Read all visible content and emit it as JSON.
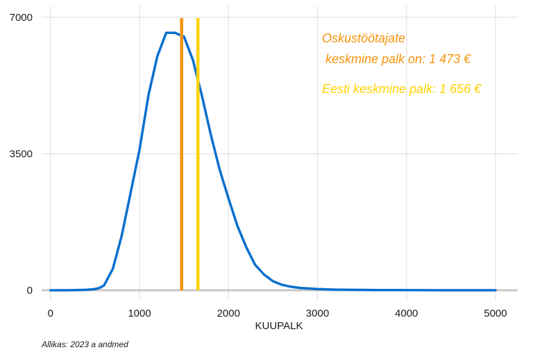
{
  "chart_data": {
    "type": "line",
    "xlabel": "KUUPALK",
    "ylabel": "",
    "xlim": [
      -100,
      5250
    ],
    "ylim": [
      -250,
      7300
    ],
    "x_ticks": [
      0,
      1000,
      2000,
      3000,
      4000,
      5000
    ],
    "x_tick_labels": [
      "0",
      "1000",
      "2000",
      "3000",
      "4000",
      "5000"
    ],
    "y_ticks": [
      0,
      3500,
      7000
    ],
    "y_tick_labels": [
      "0",
      "3500",
      "7000"
    ],
    "grid": true,
    "series": [
      {
        "color": "#0a6fce",
        "x": [
          0,
          200,
          400,
          500,
          550,
          600,
          700,
          800,
          900,
          1000,
          1100,
          1200,
          1300,
          1400,
          1500,
          1600,
          1700,
          1800,
          1900,
          2000,
          2100,
          2200,
          2300,
          2400,
          2500,
          2600,
          2700,
          2800,
          3000,
          3200,
          3500,
          3700,
          4000,
          4500,
          5000
        ],
        "y": [
          0,
          0,
          10,
          30,
          60,
          120,
          550,
          1400,
          2500,
          3600,
          5000,
          6000,
          6600,
          6600,
          6500,
          5900,
          5000,
          4000,
          3100,
          2350,
          1650,
          1100,
          650,
          400,
          230,
          140,
          90,
          60,
          30,
          15,
          8,
          4,
          2,
          0,
          0
        ]
      }
    ],
    "vlines": [
      {
        "x": 1473,
        "color": "#f5930a"
      },
      {
        "x": 1656,
        "color": "#ffd200"
      }
    ],
    "annotations": [
      {
        "lines": [
          "Oskustöötajate",
          " keskmine palk on: 1 473 €"
        ],
        "color": "#f5930a"
      },
      {
        "lines": [
          "Eesti keskmine palk: 1 656 €"
        ],
        "color": "#ffd200"
      }
    ],
    "source": "Allikas: 2023 a andmed",
    "colors": {
      "grid": "#e5e5e5",
      "baseline": "#c8c8c8",
      "text": "#1a1a1a"
    }
  }
}
